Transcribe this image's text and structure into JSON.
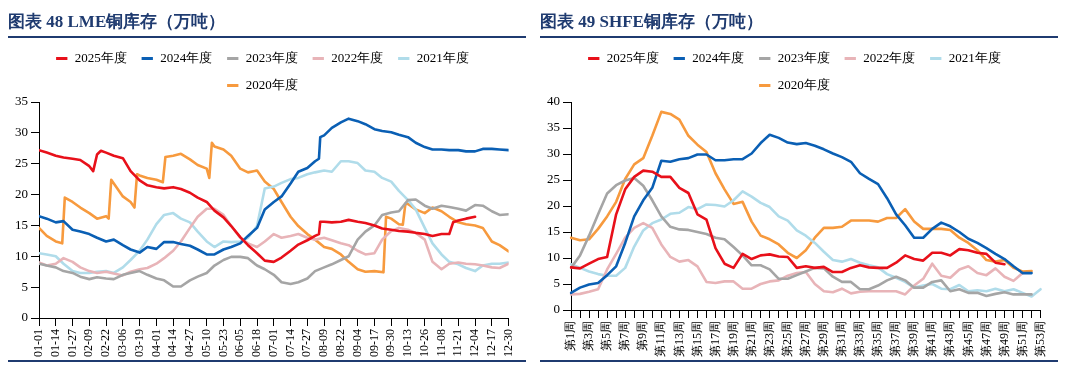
{
  "chart_data": [
    {
      "type": "line",
      "title": "图表 48 LME铜库存（万吨）",
      "legend": "top",
      "grid": false,
      "marker": "none",
      "line_style": "solid",
      "xlim": [
        "--01-01",
        "--12-30"
      ],
      "xticks": [
        {
          "value": "--01-01",
          "label": "01-01"
        },
        {
          "value": "--01-14",
          "label": "01-14"
        },
        {
          "value": "--01-27",
          "label": "01-27"
        },
        {
          "value": "--02-09",
          "label": "02-09"
        },
        {
          "value": "--02-22",
          "label": "02-22"
        },
        {
          "value": "--03-06",
          "label": "03-06"
        },
        {
          "value": "--03-19",
          "label": "03-19"
        },
        {
          "value": "--04-01",
          "label": "04-01"
        },
        {
          "value": "--04-14",
          "label": "04-14"
        },
        {
          "value": "--04-27",
          "label": "04-27"
        },
        {
          "value": "--05-10",
          "label": "05-10"
        },
        {
          "value": "--05-23",
          "label": "05-23"
        },
        {
          "value": "--06-05",
          "label": "06-05"
        },
        {
          "value": "--06-18",
          "label": "06-18"
        },
        {
          "value": "--07-01",
          "label": "07-01"
        },
        {
          "value": "--07-14",
          "label": "07-14"
        },
        {
          "value": "--07-27",
          "label": "07-27"
        },
        {
          "value": "--08-09",
          "label": "08-09"
        },
        {
          "value": "--08-22",
          "label": "08-22"
        },
        {
          "value": "--09-04",
          "label": "09-04"
        },
        {
          "value": "--09-17",
          "label": "09-17"
        },
        {
          "value": "--09-30",
          "label": "09-30"
        },
        {
          "value": "--10-13",
          "label": "10-13"
        },
        {
          "value": "--10-26",
          "label": "10-26"
        },
        {
          "value": "--11-08",
          "label": "11-08"
        },
        {
          "value": "--11-21",
          "label": "11-21"
        },
        {
          "value": "--12-04",
          "label": "12-04"
        },
        {
          "value": "--12-17",
          "label": "12-17"
        },
        {
          "value": "--12-30",
          "label": "12-30"
        }
      ],
      "ylim": [
        0,
        35
      ],
      "yticks": [
        0,
        5,
        10,
        15,
        20,
        25,
        30,
        35
      ],
      "x": [
        "--01-01",
        "--01-07",
        "--01-14",
        "--01-20",
        "--01-27",
        "--02-02",
        "--02-09",
        "--02-15",
        "--02-22",
        "--02-28",
        "--03-06",
        "--03-12",
        "--03-19",
        "--03-25",
        "--04-01",
        "--04-07",
        "--04-14",
        "--04-20",
        "--04-27",
        "--05-03",
        "--05-10",
        "--05-16",
        "--05-23",
        "--05-29",
        "--06-05",
        "--06-11",
        "--06-18",
        "--06-24",
        "--07-01",
        "--07-07",
        "--07-14",
        "--07-20",
        "--07-27",
        "--08-02",
        "--08-09",
        "--08-15",
        "--08-22",
        "--08-28",
        "--09-04",
        "--09-10",
        "--09-17",
        "--09-23",
        "--09-30",
        "--10-06",
        "--10-13",
        "--10-19",
        "--10-26",
        "--11-01",
        "--11-08",
        "--11-14",
        "--11-21",
        "--11-27",
        "--12-04",
        "--12-10",
        "--12-17",
        "--12-23",
        "--12-30"
      ],
      "series": [
        {
          "name": "2025年度",
          "color": "#e8101a",
          "x": [
            "--01-01",
            "--01-07",
            "--01-14",
            "--01-20",
            "--01-27",
            "--02-02",
            "--02-09",
            "--02-12",
            "--02-15",
            "--02-18",
            "--02-22",
            "--02-28",
            "--03-06",
            "--03-12",
            "--03-19",
            "--03-25",
            "--04-01",
            "--04-07",
            "--04-14",
            "--04-20",
            "--04-27",
            "--05-03",
            "--05-10",
            "--05-16",
            "--05-23",
            "--05-29",
            "--06-05",
            "--06-11",
            "--06-18",
            "--06-24",
            "--07-01",
            "--07-07",
            "--07-14",
            "--07-20",
            "--07-27",
            "--08-02",
            "--08-05",
            "--08-06",
            "--08-09",
            "--08-15",
            "--08-22",
            "--08-28",
            "--09-04",
            "--09-10",
            "--09-17",
            "--09-23",
            "--09-30",
            "--10-06",
            "--10-13",
            "--10-19",
            "--10-26",
            "--11-01",
            "--11-08",
            "--11-14",
            "--11-17",
            "--11-21",
            "--11-27",
            "--12-04"
          ],
          "values": [
            27.2,
            26.8,
            26.3,
            26.0,
            25.8,
            25.6,
            24.6,
            23.8,
            26.5,
            27.1,
            26.8,
            26.3,
            25.9,
            23.8,
            22.3,
            21.5,
            21.2,
            21.0,
            21.2,
            20.9,
            20.3,
            19.5,
            18.8,
            17.4,
            16.3,
            14.9,
            13.1,
            11.8,
            10.5,
            9.3,
            9.1,
            9.8,
            10.9,
            11.9,
            12.6,
            13.3,
            13.6,
            15.6,
            15.6,
            15.5,
            15.6,
            15.9,
            15.6,
            15.4,
            15.0,
            14.5,
            14.3,
            14.1,
            14.0,
            13.8,
            13.6,
            13.3,
            13.6,
            13.6,
            15.5,
            15.8,
            16.1,
            16.4
          ]
        },
        {
          "name": "2024年度",
          "color": "#0a5fb4",
          "x": [
            "--01-01",
            "--01-07",
            "--01-14",
            "--01-20",
            "--01-27",
            "--02-02",
            "--02-09",
            "--02-15",
            "--02-22",
            "--02-28",
            "--03-06",
            "--03-12",
            "--03-19",
            "--03-25",
            "--04-01",
            "--04-07",
            "--04-14",
            "--04-20",
            "--04-27",
            "--05-03",
            "--05-10",
            "--05-16",
            "--05-23",
            "--05-29",
            "--06-05",
            "--06-11",
            "--06-18",
            "--06-24",
            "--07-01",
            "--07-07",
            "--07-14",
            "--07-20",
            "--07-27",
            "--08-02",
            "--08-05",
            "--08-06",
            "--08-09",
            "--08-15",
            "--08-22",
            "--08-28",
            "--09-04",
            "--09-10",
            "--09-17",
            "--09-23",
            "--09-30",
            "--10-06",
            "--10-13",
            "--10-19",
            "--10-26",
            "--11-01",
            "--11-08",
            "--11-14",
            "--11-21",
            "--11-27",
            "--12-04",
            "--12-10",
            "--12-17",
            "--12-23",
            "--12-30"
          ],
          "values": [
            16.5,
            16.1,
            15.5,
            15.7,
            14.3,
            14.0,
            13.6,
            13.0,
            12.4,
            12.7,
            11.8,
            11.1,
            10.6,
            11.5,
            11.2,
            12.3,
            12.3,
            12.0,
            11.7,
            11.1,
            10.3,
            10.3,
            11.1,
            11.5,
            12.1,
            13.3,
            14.6,
            17.6,
            18.8,
            19.7,
            21.8,
            23.7,
            24.3,
            25.4,
            25.8,
            29.3,
            29.6,
            30.8,
            31.7,
            32.3,
            31.9,
            31.4,
            30.6,
            30.3,
            30.1,
            29.7,
            29.3,
            28.4,
            27.7,
            27.3,
            27.3,
            27.2,
            27.2,
            27.0,
            27.0,
            27.4,
            27.4,
            27.3,
            27.2
          ]
        },
        {
          "name": "2023年度",
          "color": "#a5a5a5",
          "values": [
            8.8,
            8.5,
            8.2,
            7.6,
            7.3,
            6.7,
            6.3,
            6.6,
            6.4,
            6.3,
            7.0,
            7.3,
            7.6,
            7.0,
            6.4,
            6.1,
            5.1,
            5.1,
            6.1,
            6.7,
            7.3,
            8.5,
            9.4,
            9.9,
            9.9,
            9.7,
            8.5,
            7.9,
            7.0,
            5.8,
            5.5,
            5.8,
            6.4,
            7.6,
            8.2,
            8.7,
            9.4,
            10.0,
            12.7,
            14.0,
            15.0,
            16.7,
            17.1,
            17.3,
            19.1,
            19.2,
            18.2,
            17.7,
            18.2,
            18.0,
            17.7,
            17.4,
            18.3,
            18.2,
            17.3,
            16.7,
            16.8
          ]
        },
        {
          "name": "2022年度",
          "color": "#e8b4b8",
          "values": [
            9.0,
            8.5,
            8.8,
            9.7,
            9.1,
            8.2,
            7.6,
            7.3,
            7.5,
            7.2,
            6.9,
            7.5,
            7.9,
            8.1,
            8.8,
            9.7,
            10.9,
            12.4,
            14.6,
            16.4,
            17.7,
            17.7,
            16.7,
            14.9,
            13.0,
            12.1,
            11.5,
            12.4,
            13.6,
            13.0,
            13.3,
            13.6,
            13.0,
            12.7,
            13.0,
            12.6,
            12.1,
            11.8,
            10.9,
            10.3,
            10.5,
            12.7,
            14.1,
            14.6,
            14.3,
            13.8,
            12.7,
            9.1,
            7.9,
            8.8,
            9.0,
            8.8,
            8.7,
            8.5,
            8.2,
            8.1,
            8.8
          ]
        },
        {
          "name": "2021年度",
          "color": "#b0dcea",
          "values": [
            10.5,
            10.3,
            10.0,
            8.8,
            7.6,
            7.3,
            7.3,
            7.5,
            7.6,
            7.3,
            8.2,
            9.4,
            10.9,
            12.7,
            15.2,
            16.7,
            17.0,
            16.1,
            15.5,
            14.0,
            12.4,
            11.5,
            12.4,
            12.3,
            12.4,
            13.0,
            14.9,
            21.0,
            21.3,
            21.9,
            22.5,
            22.7,
            23.3,
            23.6,
            23.9,
            23.7,
            25.4,
            25.4,
            25.1,
            23.9,
            23.7,
            22.7,
            22.1,
            20.6,
            19.1,
            17.6,
            14.6,
            12.1,
            10.3,
            9.1,
            8.7,
            8.1,
            7.6,
            8.5,
            8.8,
            8.8,
            9.0
          ]
        },
        {
          "name": "2020年度",
          "color": "#f79a3e",
          "x": [
            "--01-01",
            "--01-07",
            "--01-14",
            "--01-19",
            "--01-21",
            "--01-27",
            "--02-02",
            "--02-09",
            "--02-15",
            "--02-22",
            "--02-24",
            "--02-26",
            "--02-28",
            "--03-06",
            "--03-12",
            "--03-15",
            "--03-17",
            "--03-19",
            "--03-25",
            "--04-01",
            "--04-06",
            "--04-08",
            "--04-14",
            "--04-20",
            "--04-27",
            "--05-03",
            "--05-10",
            "--05-12",
            "--05-14",
            "--05-16",
            "--05-23",
            "--05-29",
            "--06-05",
            "--06-11",
            "--06-18",
            "--06-24",
            "--07-01",
            "--07-07",
            "--07-14",
            "--07-20",
            "--07-27",
            "--08-02",
            "--08-09",
            "--08-15",
            "--08-22",
            "--08-28",
            "--09-04",
            "--09-10",
            "--09-17",
            "--09-24",
            "--09-26",
            "--09-30",
            "--10-06",
            "--10-09",
            "--10-11",
            "--10-13",
            "--10-19",
            "--10-26",
            "--11-01",
            "--11-08",
            "--11-14",
            "--11-21",
            "--11-27",
            "--12-04",
            "--12-10",
            "--12-17",
            "--12-23",
            "--12-30"
          ],
          "values": [
            14.6,
            13.3,
            12.4,
            12.1,
            19.5,
            18.8,
            17.9,
            17.0,
            16.1,
            16.5,
            16.1,
            22.4,
            21.8,
            19.7,
            18.8,
            17.9,
            23.3,
            23.1,
            22.7,
            22.4,
            22.0,
            26.1,
            26.3,
            26.6,
            25.7,
            24.8,
            24.2,
            22.7,
            28.4,
            27.8,
            27.3,
            26.3,
            24.2,
            23.6,
            23.9,
            22.1,
            20.9,
            18.8,
            16.4,
            14.9,
            13.6,
            12.7,
            11.5,
            11.2,
            10.3,
            9.1,
            7.9,
            7.5,
            7.6,
            7.4,
            16.4,
            16.1,
            15.2,
            15.1,
            18.5,
            18.5,
            17.6,
            17.0,
            17.9,
            17.3,
            16.4,
            15.5,
            15.2,
            15.0,
            14.6,
            12.4,
            11.8,
            10.8
          ]
        }
      ]
    },
    {
      "type": "line",
      "title": "图表 49 SHFE铜库存（万吨）",
      "legend": "top",
      "grid": false,
      "marker": "none",
      "line_style": "solid",
      "categories": [
        "第1周",
        null,
        "第3周",
        null,
        "第5周",
        null,
        "第7周",
        null,
        "第9周",
        null,
        "第11周",
        null,
        "第13周",
        null,
        "第15周",
        null,
        "第17周",
        null,
        "第19周",
        null,
        "第21周",
        null,
        "第23周",
        null,
        "第25周",
        null,
        "第27周",
        null,
        "第29周",
        null,
        "第31周",
        null,
        "第33周",
        null,
        "第35周",
        null,
        "第37周",
        null,
        "第39周",
        null,
        "第41周",
        null,
        "第43周",
        null,
        "第45周",
        null,
        "第47周",
        null,
        "第49周",
        null,
        "第51周",
        null,
        "第53周"
      ],
      "ylim": [
        0,
        40
      ],
      "yticks": [
        0,
        5,
        10,
        15,
        20,
        25,
        30,
        35,
        40
      ],
      "series": [
        {
          "name": "2025年度",
          "color": "#e8101a",
          "values": [
            8.2,
            8.0,
            8.9,
            9.8,
            10.2,
            18.4,
            23.2,
            25.6,
            26.8,
            26.6,
            25.6,
            25.6,
            23.5,
            22.5,
            18.4,
            17.4,
            11.9,
            8.9,
            8.1,
            10.8,
            9.8,
            10.5,
            10.7,
            10.3,
            10.2,
            8.1,
            8.4,
            8.1,
            8.3,
            7.3,
            7.3,
            8.1,
            8.6,
            8.2,
            8.1,
            8.1,
            9.1,
            10.5,
            9.8,
            9.5,
            11.0,
            11.0,
            10.5,
            11.7,
            11.5,
            11.0,
            10.8,
            9.1,
            8.8,
            null,
            null,
            null,
            null
          ]
        },
        {
          "name": "2024年度",
          "color": "#0a5fb4",
          "values": [
            3.3,
            4.3,
            4.9,
            5.2,
            6.7,
            8.4,
            12.9,
            18.0,
            21.1,
            23.5,
            28.7,
            28.5,
            29.0,
            29.2,
            29.9,
            29.9,
            28.8,
            28.8,
            29.0,
            29.0,
            30.1,
            32.1,
            33.7,
            33.1,
            32.2,
            31.9,
            32.1,
            31.6,
            30.9,
            30.1,
            29.4,
            28.5,
            26.3,
            25.2,
            24.2,
            21.5,
            18.4,
            16.3,
            13.9,
            13.9,
            15.6,
            16.8,
            16.1,
            15.0,
            13.7,
            12.9,
            11.9,
            10.8,
            9.8,
            8.4,
            7.1,
            7.1,
            null
          ]
        },
        {
          "name": "2023年度",
          "color": "#a5a5a5",
          "values": [
            8.1,
            10.5,
            14.3,
            18.4,
            22.4,
            24.0,
            24.9,
            25.4,
            23.9,
            21.1,
            18.0,
            16.0,
            15.5,
            15.4,
            15.0,
            14.6,
            13.9,
            13.6,
            12.1,
            10.5,
            8.6,
            8.6,
            7.8,
            6.0,
            6.0,
            6.7,
            7.4,
            8.1,
            8.0,
            6.4,
            5.4,
            5.4,
            4.0,
            4.0,
            4.7,
            5.7,
            6.4,
            5.7,
            4.3,
            4.3,
            5.4,
            5.7,
            3.6,
            4.0,
            3.3,
            3.3,
            2.7,
            3.1,
            3.4,
            3.0,
            3.0,
            3.0,
            null
          ]
        },
        {
          "name": "2022年度",
          "color": "#e8b4b8",
          "values": [
            3.0,
            3.1,
            3.5,
            4.0,
            7.8,
            10.8,
            13.9,
            15.8,
            16.7,
            15.8,
            12.6,
            10.2,
            9.3,
            9.6,
            8.4,
            5.4,
            5.2,
            5.5,
            5.5,
            4.1,
            4.1,
            5.0,
            5.5,
            5.7,
            6.6,
            7.1,
            7.3,
            5.0,
            3.6,
            3.4,
            4.1,
            3.2,
            3.5,
            3.6,
            3.6,
            3.6,
            3.6,
            3.0,
            4.7,
            6.0,
            8.9,
            6.6,
            6.2,
            7.8,
            8.4,
            7.1,
            6.7,
            8.0,
            6.4,
            5.6,
            7.1,
            null,
            null
          ]
        },
        {
          "name": "2021年度",
          "color": "#b0dcea",
          "values": [
            8.8,
            8.1,
            7.4,
            6.9,
            6.6,
            6.6,
            8.1,
            12.2,
            15.3,
            16.7,
            17.4,
            18.5,
            18.7,
            19.8,
            19.4,
            20.3,
            20.2,
            19.9,
            21.1,
            22.8,
            21.8,
            20.6,
            19.8,
            18.0,
            17.2,
            15.3,
            14.3,
            12.9,
            11.2,
            9.6,
            9.3,
            9.8,
            9.1,
            8.6,
            8.2,
            6.9,
            6.2,
            5.4,
            4.3,
            4.7,
            5.0,
            4.1,
            4.0,
            4.8,
            3.6,
            3.8,
            3.6,
            4.1,
            3.6,
            4.0,
            3.3,
            2.6,
            4.0
          ]
        },
        {
          "name": "2020年度",
          "color": "#f79a3e",
          "values": [
            13.9,
            13.4,
            13.6,
            15.6,
            18.0,
            20.8,
            25.2,
            28.0,
            29.2,
            33.5,
            38.1,
            37.7,
            36.6,
            33.5,
            31.8,
            30.4,
            26.3,
            23.2,
            20.4,
            20.8,
            17.0,
            14.3,
            13.6,
            12.6,
            11.0,
            10.0,
            11.5,
            13.9,
            15.8,
            15.8,
            16.0,
            17.2,
            17.2,
            17.2,
            17.0,
            17.7,
            17.7,
            19.4,
            17.0,
            15.6,
            15.6,
            15.6,
            15.4,
            13.9,
            12.9,
            11.5,
            9.6,
            9.3,
            9.6,
            8.1,
            7.4,
            7.5,
            null
          ]
        }
      ]
    }
  ]
}
